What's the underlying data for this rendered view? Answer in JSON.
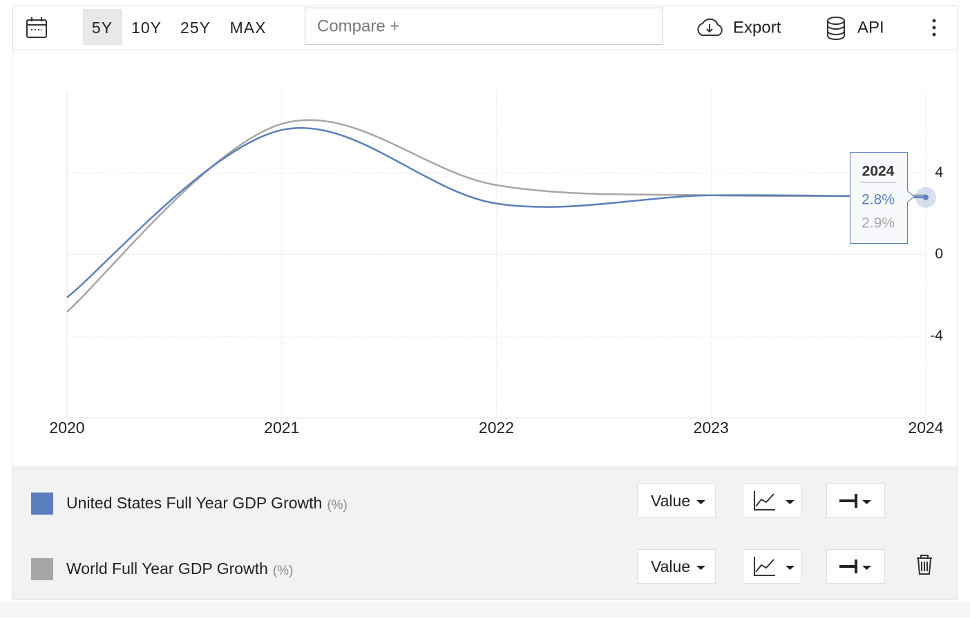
{
  "toolbar": {
    "ranges": [
      "5Y",
      "10Y",
      "25Y",
      "MAX"
    ],
    "active_range": 0,
    "compare": "Compare +",
    "export": "Export",
    "api": "API"
  },
  "chart_data": {
    "type": "line",
    "x": [
      2020,
      2021,
      2022,
      2023,
      2024
    ],
    "xlim": [
      2020,
      2024
    ],
    "xticks": [
      2020,
      2021,
      2022,
      2023,
      2024
    ],
    "ylim": [
      -8,
      8
    ],
    "yticks": [
      -4,
      0,
      4
    ],
    "grid": true,
    "series": [
      {
        "name": "United States Full Year GDP Growth",
        "unit": "(%)",
        "color": "#5b7fbd",
        "values": [
          -2.1,
          6.1,
          2.5,
          2.9,
          2.8
        ],
        "value_labels": [
          null,
          null,
          null,
          null,
          "2.8%"
        ]
      },
      {
        "name": "World Full Year GDP Growth",
        "unit": "(%)",
        "color": "#a6a6a6",
        "values": [
          -2.8,
          6.4,
          3.4,
          2.9,
          2.9
        ],
        "value_labels": [
          null,
          null,
          null,
          null,
          "2.9%"
        ]
      }
    ]
  },
  "series_controls": [
    {
      "mode": "Value"
    },
    {
      "mode": "Value"
    }
  ]
}
